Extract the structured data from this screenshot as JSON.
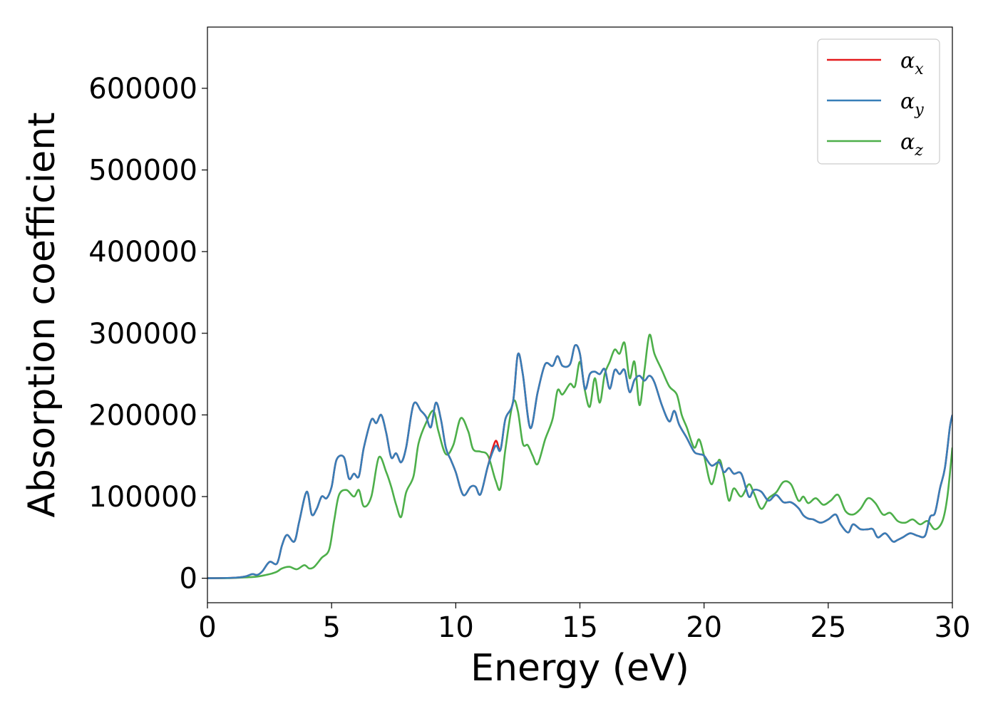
{
  "chart_data": {
    "type": "line",
    "title": "",
    "xlabel": "Energy (eV)",
    "ylabel": "Absorption coefficient",
    "xlim": [
      0,
      30
    ],
    "ylim": [
      -30000,
      675000
    ],
    "xticks": [
      0,
      5,
      10,
      15,
      20,
      25,
      30
    ],
    "xtick_labels": [
      "0",
      "5",
      "10",
      "15",
      "20",
      "25",
      "30"
    ],
    "yticks": [
      0,
      100000,
      200000,
      300000,
      400000,
      500000,
      600000
    ],
    "ytick_labels": [
      "0",
      "100000",
      "200000",
      "300000",
      "400000",
      "500000",
      "600000"
    ],
    "grid": false,
    "legend_position": "top-right",
    "series": [
      {
        "name": "αx",
        "legend_symbol": "α",
        "legend_sub": "x",
        "color": "#e41a1c",
        "x": [
          0,
          1.0,
          1.5,
          1.8,
          2.0,
          2.2,
          2.5,
          2.8,
          3.0,
          3.2,
          3.5,
          3.7,
          4.0,
          4.2,
          4.4,
          4.6,
          4.8,
          5.0,
          5.2,
          5.5,
          5.7,
          5.9,
          6.1,
          6.3,
          6.6,
          6.8,
          7.0,
          7.2,
          7.4,
          7.6,
          7.8,
          8.0,
          8.3,
          8.6,
          8.8,
          9.0,
          9.2,
          9.4,
          9.6,
          9.8,
          10.0,
          10.3,
          10.6,
          10.8,
          11.0,
          11.3,
          11.6,
          11.8,
          12.0,
          12.3,
          12.5,
          12.7,
          13.0,
          13.3,
          13.6,
          13.9,
          14.1,
          14.3,
          14.6,
          14.8,
          15.0,
          15.2,
          15.4,
          15.6,
          15.8,
          16.0,
          16.2,
          16.4,
          16.6,
          16.8,
          17.0,
          17.2,
          17.4,
          17.6,
          17.8,
          18.0,
          18.3,
          18.6,
          18.8,
          19.0,
          19.3,
          19.6,
          19.8,
          20.0,
          20.3,
          20.6,
          20.8,
          21.0,
          21.2,
          21.5,
          21.8,
          22.0,
          22.3,
          22.6,
          22.9,
          23.2,
          23.5,
          23.8,
          24.0,
          24.2,
          24.4,
          24.7,
          25.0,
          25.3,
          25.5,
          25.8,
          26.0,
          26.3,
          26.6,
          26.8,
          27.0,
          27.3,
          27.6,
          27.8,
          28.0,
          28.3,
          28.6,
          28.9,
          29.1,
          29.3,
          29.5,
          29.7,
          29.9,
          30.0
        ],
        "values": [
          0,
          500,
          2000,
          5000,
          4000,
          8000,
          20000,
          18000,
          40000,
          53000,
          45000,
          70000,
          106000,
          78000,
          85000,
          100000,
          98000,
          112000,
          145000,
          148000,
          122000,
          128000,
          125000,
          160000,
          194000,
          190000,
          200000,
          178000,
          148000,
          153000,
          142000,
          160000,
          213000,
          205000,
          198000,
          185000,
          215000,
          195000,
          160000,
          145000,
          130000,
          102000,
          112000,
          112000,
          103000,
          138000,
          168000,
          157000,
          195000,
          215000,
          274000,
          250000,
          184000,
          228000,
          262000,
          260000,
          272000,
          260000,
          262000,
          285000,
          275000,
          232000,
          250000,
          253000,
          250000,
          256000,
          232000,
          255000,
          250000,
          255000,
          228000,
          243000,
          248000,
          242000,
          248000,
          240000,
          212000,
          192000,
          205000,
          188000,
          172000,
          155000,
          152000,
          150000,
          138000,
          142000,
          130000,
          135000,
          128000,
          128000,
          100000,
          108000,
          106000,
          95000,
          102000,
          93000,
          93000,
          86000,
          77000,
          73000,
          72000,
          68000,
          72000,
          78000,
          66000,
          56000,
          66000,
          60000,
          60000,
          60000,
          50000,
          55000,
          45000,
          47000,
          50000,
          55000,
          52000,
          52000,
          75000,
          80000,
          110000,
          135000,
          185000,
          200000
        ]
      },
      {
        "name": "αy",
        "legend_symbol": "α",
        "legend_sub": "y",
        "color": "#377eb8",
        "x": [
          0,
          1.0,
          1.5,
          1.8,
          2.0,
          2.2,
          2.5,
          2.8,
          3.0,
          3.2,
          3.5,
          3.7,
          4.0,
          4.2,
          4.4,
          4.6,
          4.8,
          5.0,
          5.2,
          5.5,
          5.7,
          5.9,
          6.1,
          6.3,
          6.6,
          6.8,
          7.0,
          7.2,
          7.4,
          7.6,
          7.8,
          8.0,
          8.3,
          8.6,
          8.8,
          9.0,
          9.2,
          9.4,
          9.6,
          9.8,
          10.0,
          10.3,
          10.6,
          10.8,
          11.0,
          11.3,
          11.6,
          11.8,
          12.0,
          12.3,
          12.5,
          12.7,
          13.0,
          13.3,
          13.6,
          13.9,
          14.1,
          14.3,
          14.6,
          14.8,
          15.0,
          15.2,
          15.4,
          15.6,
          15.8,
          16.0,
          16.2,
          16.4,
          16.6,
          16.8,
          17.0,
          17.2,
          17.4,
          17.6,
          17.8,
          18.0,
          18.3,
          18.6,
          18.8,
          19.0,
          19.3,
          19.6,
          19.8,
          20.0,
          20.3,
          20.6,
          20.8,
          21.0,
          21.2,
          21.5,
          21.8,
          22.0,
          22.3,
          22.6,
          22.9,
          23.2,
          23.5,
          23.8,
          24.0,
          24.2,
          24.4,
          24.7,
          25.0,
          25.3,
          25.5,
          25.8,
          26.0,
          26.3,
          26.6,
          26.8,
          27.0,
          27.3,
          27.6,
          27.8,
          28.0,
          28.3,
          28.6,
          28.9,
          29.1,
          29.3,
          29.5,
          29.7,
          29.9,
          30.0
        ],
        "values": [
          0,
          500,
          2000,
          5000,
          4000,
          8000,
          20000,
          18000,
          40000,
          53000,
          45000,
          70000,
          106000,
          78000,
          85000,
          100000,
          98000,
          112000,
          145000,
          148000,
          122000,
          128000,
          125000,
          160000,
          194000,
          190000,
          200000,
          178000,
          148000,
          153000,
          142000,
          160000,
          213000,
          205000,
          198000,
          185000,
          215000,
          195000,
          160000,
          145000,
          130000,
          102000,
          112000,
          112000,
          103000,
          138000,
          162000,
          157000,
          195000,
          215000,
          274000,
          250000,
          184000,
          228000,
          262000,
          260000,
          272000,
          260000,
          262000,
          285000,
          275000,
          232000,
          250000,
          253000,
          250000,
          256000,
          232000,
          255000,
          250000,
          255000,
          228000,
          243000,
          248000,
          242000,
          248000,
          240000,
          212000,
          192000,
          205000,
          188000,
          172000,
          155000,
          152000,
          150000,
          138000,
          142000,
          130000,
          135000,
          128000,
          128000,
          100000,
          108000,
          106000,
          95000,
          102000,
          93000,
          93000,
          86000,
          77000,
          73000,
          72000,
          68000,
          72000,
          78000,
          66000,
          56000,
          66000,
          60000,
          60000,
          60000,
          50000,
          55000,
          45000,
          47000,
          50000,
          55000,
          52000,
          52000,
          75000,
          80000,
          110000,
          135000,
          185000,
          200000
        ]
      },
      {
        "name": "αz",
        "legend_symbol": "α",
        "legend_sub": "z",
        "color": "#4daf4a",
        "x": [
          0,
          1.0,
          1.5,
          2.0,
          2.5,
          2.8,
          3.0,
          3.3,
          3.6,
          3.9,
          4.1,
          4.3,
          4.6,
          4.9,
          5.1,
          5.3,
          5.6,
          5.9,
          6.1,
          6.3,
          6.6,
          6.9,
          7.2,
          7.4,
          7.6,
          7.8,
          8.0,
          8.3,
          8.5,
          8.8,
          9.1,
          9.3,
          9.6,
          9.9,
          10.2,
          10.5,
          10.7,
          11.0,
          11.3,
          11.6,
          11.8,
          12.0,
          12.3,
          12.5,
          12.7,
          12.9,
          13.1,
          13.3,
          13.6,
          13.9,
          14.1,
          14.3,
          14.6,
          14.8,
          15.0,
          15.2,
          15.4,
          15.6,
          15.8,
          16.0,
          16.2,
          16.4,
          16.6,
          16.8,
          17.0,
          17.2,
          17.4,
          17.6,
          17.8,
          18.0,
          18.3,
          18.6,
          18.9,
          19.1,
          19.3,
          19.6,
          19.8,
          20.0,
          20.3,
          20.6,
          20.8,
          21.0,
          21.2,
          21.5,
          21.8,
          22.0,
          22.3,
          22.6,
          22.9,
          23.2,
          23.5,
          23.8,
          24.0,
          24.2,
          24.5,
          24.8,
          25.1,
          25.4,
          25.7,
          26.0,
          26.3,
          26.6,
          26.9,
          27.2,
          27.5,
          27.8,
          28.1,
          28.4,
          28.7,
          29.0,
          29.3,
          29.6,
          29.8,
          30.0
        ],
        "values": [
          0,
          300,
          1000,
          2000,
          5000,
          8000,
          12000,
          14000,
          11000,
          16000,
          12000,
          14000,
          25000,
          35000,
          70000,
          102000,
          108000,
          100000,
          108000,
          88000,
          100000,
          148000,
          130000,
          112000,
          90000,
          75000,
          105000,
          125000,
          165000,
          190000,
          205000,
          180000,
          152000,
          163000,
          196000,
          180000,
          158000,
          155000,
          150000,
          120000,
          110000,
          158000,
          215000,
          205000,
          165000,
          163000,
          150000,
          140000,
          170000,
          195000,
          230000,
          225000,
          238000,
          235000,
          265000,
          230000,
          210000,
          245000,
          215000,
          250000,
          265000,
          280000,
          275000,
          288000,
          245000,
          265000,
          212000,
          255000,
          298000,
          275000,
          255000,
          235000,
          225000,
          200000,
          185000,
          160000,
          170000,
          150000,
          115000,
          145000,
          125000,
          95000,
          110000,
          100000,
          115000,
          105000,
          85000,
          98000,
          105000,
          118000,
          115000,
          95000,
          100000,
          92000,
          98000,
          90000,
          95000,
          102000,
          82000,
          78000,
          85000,
          98000,
          92000,
          78000,
          80000,
          70000,
          68000,
          72000,
          66000,
          70000,
          60000,
          70000,
          100000,
          160000
        ]
      }
    ]
  }
}
